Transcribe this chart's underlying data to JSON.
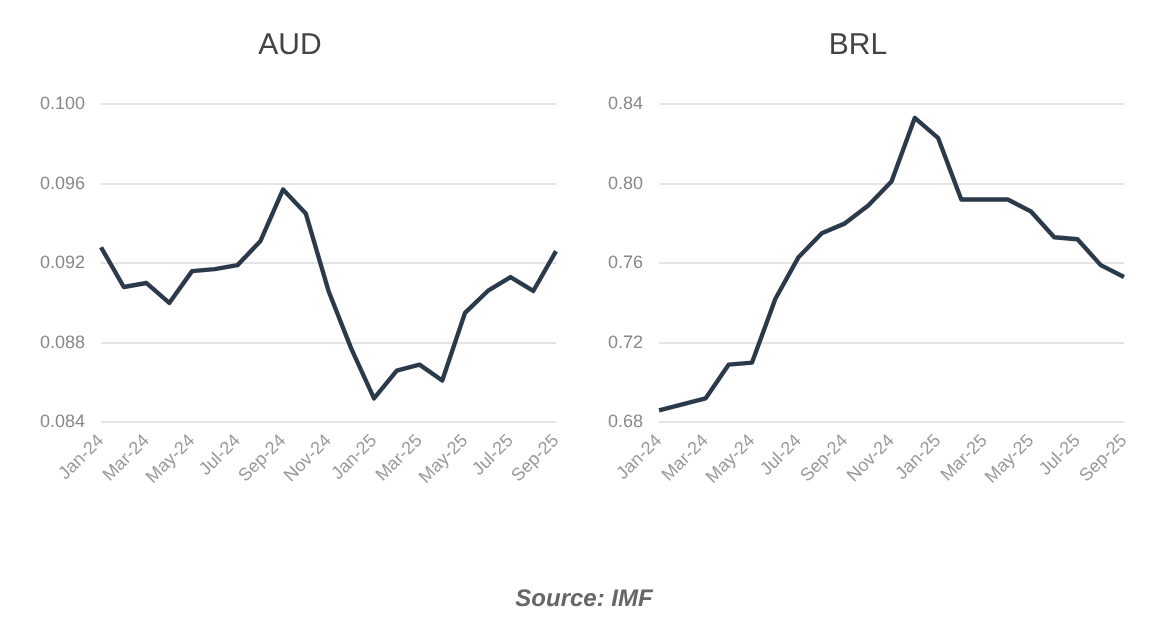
{
  "chart_data": [
    {
      "type": "line",
      "title": "AUD",
      "categories": [
        "Jan-24",
        null,
        "Mar-24",
        null,
        "May-24",
        null,
        "Jul-24",
        null,
        "Sep-24",
        null,
        "Nov-24",
        null,
        "Jan-25",
        null,
        "Mar-25",
        null,
        "May-25",
        null,
        "Jul-25",
        null,
        "Sep-25"
      ],
      "series": [
        {
          "color": "#2b3a4a",
          "values": [
            0.0928,
            0.0908,
            0.091,
            0.09,
            0.0916,
            0.0917,
            0.0919,
            0.0931,
            0.0957,
            0.0945,
            0.0906,
            0.0877,
            0.0852,
            0.0866,
            0.0869,
            0.0861,
            0.0895,
            0.0906,
            0.0913,
            0.0906,
            0.0926
          ]
        }
      ],
      "ylim": [
        0.084,
        0.1
      ],
      "yticks": [
        {
          "value": 0.084,
          "label": "0.084"
        },
        {
          "value": 0.088,
          "label": "0.088"
        },
        {
          "value": 0.092,
          "label": "0.092"
        },
        {
          "value": 0.096,
          "label": "0.096"
        },
        {
          "value": 0.1,
          "label": "0.100"
        }
      ],
      "grid": "y",
      "legend": false,
      "marker": "none",
      "line_style": "solid"
    },
    {
      "type": "line",
      "title": "BRL",
      "categories": [
        "Jan-24",
        null,
        "Mar-24",
        null,
        "May-24",
        null,
        "Jul-24",
        null,
        "Sep-24",
        null,
        "Nov-24",
        null,
        "Jan-25",
        null,
        "Mar-25",
        null,
        "May-25",
        null,
        "Jul-25",
        null,
        "Sep-25"
      ],
      "series": [
        {
          "color": "#2b3a4a",
          "values": [
            0.686,
            0.689,
            0.692,
            0.709,
            0.71,
            0.742,
            0.763,
            0.775,
            0.78,
            0.789,
            0.801,
            0.833,
            0.823,
            0.792,
            0.792,
            0.792,
            0.786,
            0.773,
            0.772,
            0.759,
            0.753
          ]
        }
      ],
      "ylim": [
        0.68,
        0.84
      ],
      "yticks": [
        {
          "value": 0.68,
          "label": "0.68"
        },
        {
          "value": 0.72,
          "label": "0.72"
        },
        {
          "value": 0.76,
          "label": "0.76"
        },
        {
          "value": 0.8,
          "label": "0.80"
        },
        {
          "value": 0.84,
          "label": "0.84"
        }
      ],
      "grid": "y",
      "legend": false,
      "marker": "none",
      "line_style": "solid",
      "annotations": [
        "Source: IMF"
      ]
    }
  ]
}
